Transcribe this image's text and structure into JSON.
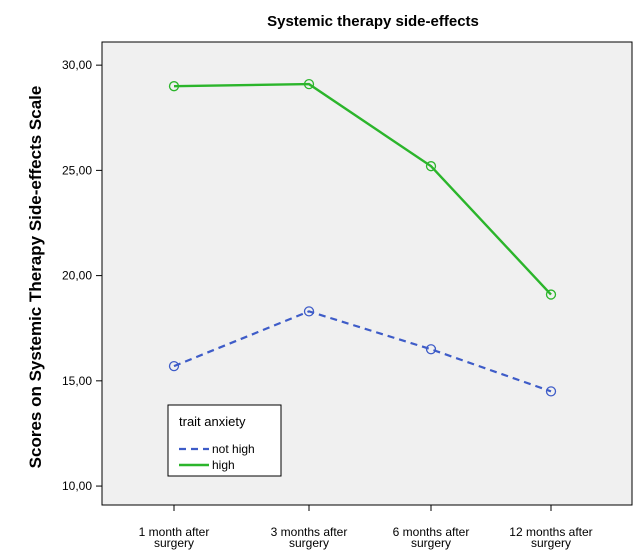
{
  "chart_data": {
    "type": "line",
    "title": "Systemic therapy side-effects",
    "xlabel": "",
    "ylabel": "Scores on Systemic Therapy Side-effects Scale",
    "categories": [
      [
        "1 month after",
        "surgery"
      ],
      [
        "3 months after",
        "surgery"
      ],
      [
        "6 months after",
        "surgery"
      ],
      [
        "12 months after",
        "surgery"
      ]
    ],
    "yticks": [
      "10,00",
      "15,00",
      "20,00",
      "25,00",
      "30,00"
    ],
    "ytick_values": [
      10,
      15,
      20,
      25,
      30
    ],
    "ylim": [
      9.1,
      31.1
    ],
    "grid": false,
    "legend": {
      "title": "trait anxiety",
      "placement": "bottom-left"
    },
    "series": [
      {
        "name": "not high",
        "values": [
          15.7,
          18.3,
          16.5,
          14.5
        ],
        "color": "#3e5cc8",
        "line_style": "dashed"
      },
      {
        "name": "high",
        "values": [
          29.0,
          29.1,
          25.2,
          19.1
        ],
        "color": "#2bb52b",
        "line_style": "solid"
      }
    ],
    "colors": {
      "plot_background": "#f0f0f0",
      "frame": "#000000"
    }
  }
}
